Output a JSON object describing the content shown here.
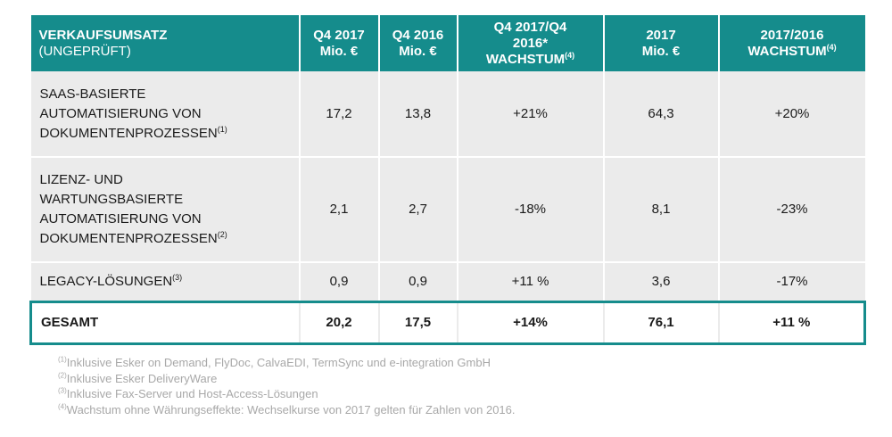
{
  "table": {
    "headers": [
      {
        "title": "VERKAUFSUMSATZ",
        "sub": "(UNGEPRÜFT)"
      },
      {
        "line1": "Q4 2017",
        "line2": "Mio. €"
      },
      {
        "line1": "Q4 2016",
        "line2": "Mio. €"
      },
      {
        "line1": "Q4 2017/Q4",
        "line2": "2016*",
        "line3": "WACHSTUM",
        "sup": "(4)"
      },
      {
        "line1": "2017",
        "line2": "Mio. €"
      },
      {
        "line1": "2017/2016",
        "line2": "WACHSTUM",
        "sup": "(4)"
      }
    ],
    "rows": [
      {
        "label_lines": [
          "SAAS-BASIERTE",
          "AUTOMATISIERUNG VON",
          "DOKUMENTENPROZESSEN"
        ],
        "sup": "(1)",
        "values": [
          "17,2",
          "13,8",
          "+21%",
          "64,3",
          "+20%"
        ]
      },
      {
        "label_lines": [
          "LIZENZ- UND",
          "WARTUNGSBASIERTE",
          "AUTOMATISIERUNG VON",
          "DOKUMENTENPROZESSEN"
        ],
        "sup": "(2)",
        "values": [
          "2,1",
          "2,7",
          "-18%",
          "8,1",
          "-23%"
        ]
      },
      {
        "label_lines": [
          "LEGACY-LÖSUNGEN"
        ],
        "sup": "(3)",
        "values": [
          "0,9",
          "0,9",
          "+11 %",
          "3,6",
          "-17%"
        ]
      }
    ],
    "total": {
      "label": "GESAMT",
      "values": [
        "20,2",
        "17,5",
        "+14%",
        "76,1",
        "+11 %"
      ]
    }
  },
  "footnotes": [
    {
      "sup": "(1)",
      "text": "Inklusive Esker on Demand, FlyDoc, CalvaEDI, TermSync und e-integration GmbH"
    },
    {
      "sup": "(2)",
      "text": "Inklusive Esker DeliveryWare"
    },
    {
      "sup": "(3)",
      "text": "Inklusive Fax-Server und Host-Access-Lösungen"
    },
    {
      "sup": "(4)",
      "text": "Wachstum ohne Währungseffekte: Wechselkurse von 2017 gelten für Zahlen von 2016."
    }
  ],
  "colors": {
    "header_bg": "#158c8c",
    "row_bg": "#ebebeb",
    "footnote_text": "#a8a8a8"
  }
}
